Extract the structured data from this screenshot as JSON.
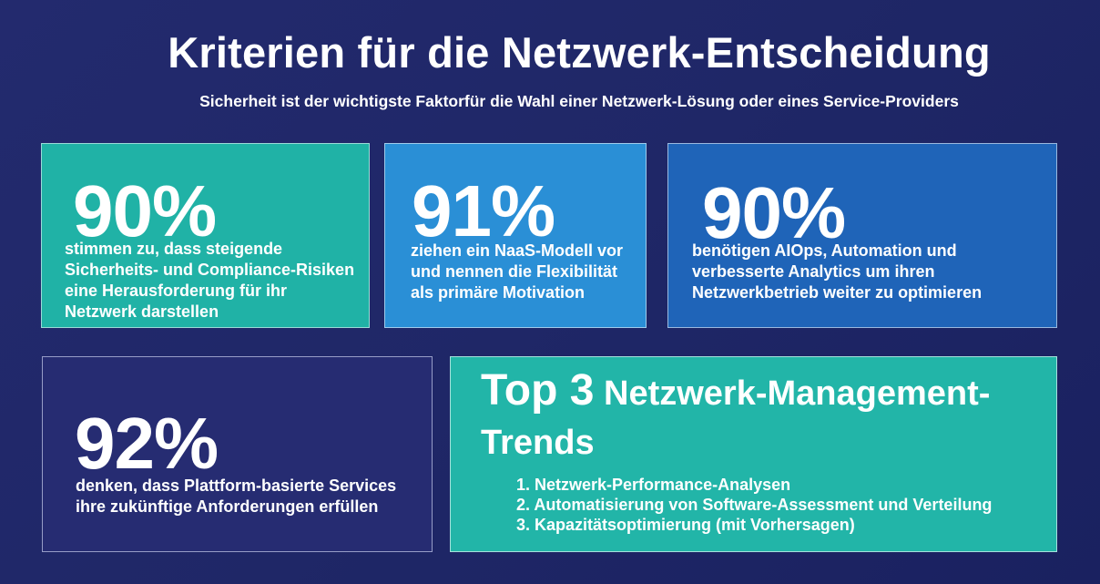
{
  "title": "Kriterien für die Netzwerk-Entscheidung",
  "subtitle": "Sicherheit ist der wichtigste Faktorfür die Wahl einer Netzwerk-Lösung oder eines Service-Providers",
  "stats": [
    {
      "value": "90%",
      "lines": [
        "stimmen zu, dass steigende",
        "Sicherheits- und Compliance-Risiken",
        "eine Herausforderung für ihr",
        "Netzwerk darstellen"
      ]
    },
    {
      "value": "91%",
      "lines": [
        "ziehen ein NaaS-Modell vor",
        "und nennen die Flexibilität",
        "als primäre Motivation"
      ]
    },
    {
      "value": "90%",
      "lines": [
        "benötigen AIOps, Automation und",
        "verbesserte Analytics um ihren",
        "Netzwerkbetrieb weiter zu optimieren"
      ]
    },
    {
      "value": "92%",
      "lines": [
        "denken, dass Plattform-basierte Services",
        "ihre zukünftige Anforderungen erfüllen"
      ]
    }
  ],
  "trends": {
    "heading_top": "Top 3",
    "heading_rest": " Netzwerk-Management-",
    "heading_line2": "Trends",
    "items": [
      "1. Netzwerk-Performance-Analysen",
      "2. Automatisierung von Software-Assessment und Verteilung",
      "3. Kapazitätsoptimierung (mit Vorhersagen)"
    ]
  },
  "colors": {
    "background": "#1f2767",
    "teal": "#20b2a6",
    "blue_light": "#2a8fd6",
    "blue_dark": "#1f64b8",
    "navy": "#262c72"
  }
}
